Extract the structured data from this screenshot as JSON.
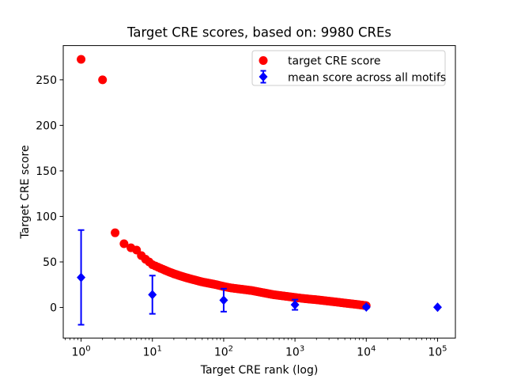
{
  "chart_data": {
    "type": "scatter",
    "title": "Target CRE scores, based on: 9980 CREs",
    "xlabel": "Target CRE rank (log)",
    "ylabel": "Target CRE score",
    "x_scale": "log",
    "grid": false,
    "legend_position": "upper right",
    "n_cres": 9980,
    "xlim": [
      0.562,
      177828
    ],
    "ylim": [
      -33.6,
      287.6
    ],
    "x_ticks": {
      "values": [
        1,
        10,
        100,
        1000,
        10000,
        100000
      ],
      "labels": [
        "10^0",
        "10^1",
        "10^2",
        "10^3",
        "10^4",
        "10^5"
      ]
    },
    "y_ticks": {
      "values": [
        0,
        50,
        100,
        150,
        200,
        250
      ],
      "labels": [
        "0",
        "50",
        "100",
        "150",
        "200",
        "250"
      ]
    },
    "series": [
      {
        "name": "target CRE score",
        "marker": "circle",
        "color": "#ff0000",
        "points": [
          [
            1,
            272.5
          ],
          [
            2,
            250
          ],
          [
            3,
            82
          ],
          [
            4,
            70
          ],
          [
            5,
            65.5
          ],
          [
            6,
            63
          ],
          [
            7,
            57
          ],
          [
            8,
            53
          ],
          [
            9,
            50
          ],
          [
            10,
            47
          ],
          [
            13,
            43
          ],
          [
            16,
            40
          ],
          [
            20,
            37
          ],
          [
            25,
            34.5
          ],
          [
            32,
            32
          ],
          [
            40,
            30
          ],
          [
            50,
            28
          ],
          [
            63,
            26.5
          ],
          [
            79,
            25
          ],
          [
            100,
            23
          ],
          [
            126,
            21.5
          ],
          [
            158,
            20.5
          ],
          [
            200,
            19.5
          ],
          [
            251,
            18.5
          ],
          [
            316,
            17
          ],
          [
            398,
            15.5
          ],
          [
            501,
            14
          ],
          [
            631,
            13
          ],
          [
            794,
            12
          ],
          [
            1000,
            11
          ],
          [
            1259,
            10
          ],
          [
            1585,
            9.2
          ],
          [
            1995,
            8.5
          ],
          [
            2512,
            7.6
          ],
          [
            3162,
            6.7
          ],
          [
            3981,
            5.8
          ],
          [
            5012,
            4.8
          ],
          [
            6310,
            3.9
          ],
          [
            7943,
            3.0
          ],
          [
            9980,
            2.0
          ]
        ]
      },
      {
        "name": "mean score across all motifs",
        "marker": "diamond",
        "color": "#0000ff",
        "ranks": [
          1,
          10,
          100,
          1000,
          10000,
          100000
        ],
        "values": [
          33,
          14,
          8,
          3,
          0.5,
          0.2
        ],
        "yerr": [
          52,
          21,
          12.6,
          5.6,
          1.5,
          0.3
        ]
      }
    ]
  }
}
